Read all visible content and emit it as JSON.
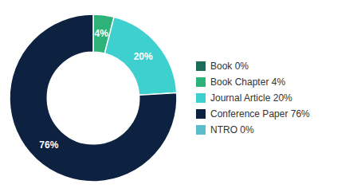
{
  "chart_data": {
    "type": "pie",
    "categories": [
      "Book 0%",
      "Book Chapter 4%",
      "Journal Article 20%",
      "Conference Paper 76%",
      "NTRO 0%"
    ],
    "values": [
      0,
      4,
      20,
      76,
      0
    ],
    "value_labels": [
      null,
      "4%",
      "20%",
      "76%",
      null
    ],
    "colors": [
      "#1a6b5a",
      "#2db37a",
      "#3ecfcf",
      "#0d2240",
      "#5bbccc"
    ],
    "data_labels": true,
    "legend": "right"
  }
}
